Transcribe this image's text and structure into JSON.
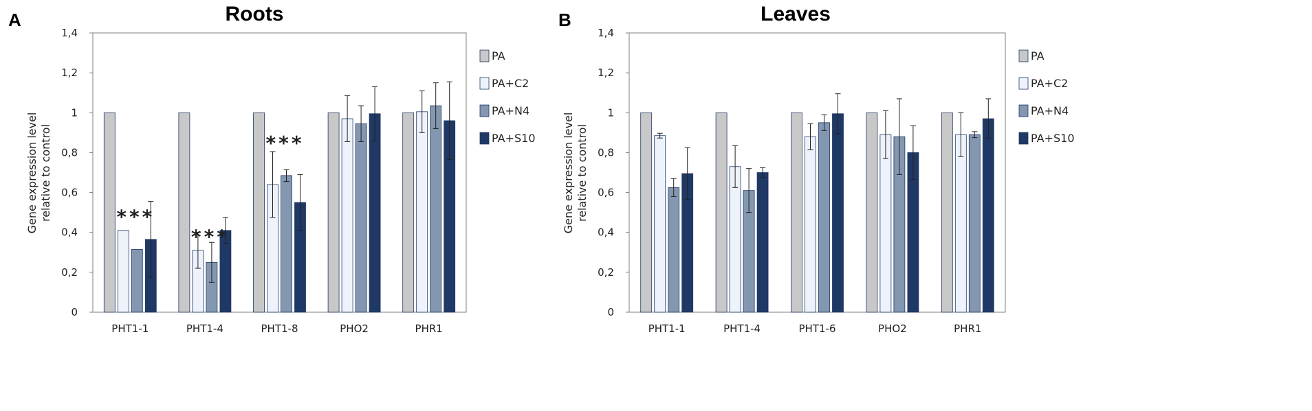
{
  "chart_data": [
    {
      "type": "bar",
      "panel": "A",
      "title": "Roots",
      "xlabel": "",
      "ylabel_line1": "Gene expression level",
      "ylabel_line2": "relative to control",
      "ylim": [
        0,
        1.4
      ],
      "yticks": [
        0,
        0.2,
        0.4,
        0.6,
        0.8,
        1,
        1.2,
        1.4
      ],
      "ytick_labels": [
        "0",
        "0,2",
        "0,4",
        "0,6",
        "0,8",
        "1",
        "1,2",
        "1,4"
      ],
      "categories": [
        "PHT1-1",
        "PHT1-4",
        "PHT1-8",
        "PHO2",
        "PHR1"
      ],
      "series": [
        {
          "name": "PA",
          "color": "#c8c8c8",
          "values": [
            1,
            1,
            1,
            1,
            1
          ],
          "errors": [
            0,
            0,
            0,
            0,
            0
          ]
        },
        {
          "name": "PA+C2",
          "color": "#eef3fb",
          "values": [
            0.41,
            0.31,
            0.64,
            0.97,
            1.005
          ],
          "errors": [
            0,
            0.09,
            0.165,
            0.115,
            0.105
          ]
        },
        {
          "name": "PA+N4",
          "color": "#8497b0",
          "values": [
            0.315,
            0.25,
            0.685,
            0.945,
            1.035
          ],
          "errors": [
            0,
            0.1,
            0.03,
            0.09,
            0.115
          ]
        },
        {
          "name": "PA+S10",
          "color": "#203864",
          "values": [
            0.365,
            0.41,
            0.55,
            0.995,
            0.96
          ],
          "errors": [
            0.19,
            0.065,
            0.14,
            0.135,
            0.195
          ]
        }
      ],
      "annotations": [
        {
          "category": "PHT1-1",
          "text": "***",
          "y": 0.5
        },
        {
          "category": "PHT1-4",
          "text": "***",
          "y": 0.4
        },
        {
          "category": "PHT1-8",
          "text": "***",
          "y": 0.87
        }
      ],
      "legend_position": "right"
    },
    {
      "type": "bar",
      "panel": "B",
      "title": "Leaves",
      "xlabel": "",
      "ylabel_line1": "Gene expression level",
      "ylabel_line2": "relative to control",
      "ylim": [
        0,
        1.4
      ],
      "yticks": [
        0,
        0.2,
        0.4,
        0.6,
        0.8,
        1,
        1.2,
        1.4
      ],
      "ytick_labels": [
        "0",
        "0,2",
        "0,4",
        "0,6",
        "0,8",
        "1",
        "1,2",
        "1,4"
      ],
      "categories": [
        "PHT1-1",
        "PHT1-4",
        "PHT1-6",
        "PHO2",
        "PHR1"
      ],
      "series": [
        {
          "name": "PA",
          "color": "#c8c8c8",
          "values": [
            1,
            1,
            1,
            1,
            1
          ],
          "errors": [
            0,
            0,
            0,
            0,
            0
          ]
        },
        {
          "name": "PA+C2",
          "color": "#eef3fb",
          "values": [
            0.885,
            0.73,
            0.88,
            0.89,
            0.89
          ],
          "errors": [
            0.012,
            0.105,
            0.065,
            0.12,
            0.11
          ]
        },
        {
          "name": "PA+N4",
          "color": "#8497b0",
          "values": [
            0.625,
            0.61,
            0.95,
            0.88,
            0.89
          ],
          "errors": [
            0.045,
            0.11,
            0.04,
            0.19,
            0.015
          ]
        },
        {
          "name": "PA+S10",
          "color": "#203864",
          "values": [
            0.695,
            0.7,
            0.995,
            0.8,
            0.97
          ],
          "errors": [
            0.13,
            0.025,
            0.1,
            0.135,
            0.1
          ]
        }
      ],
      "annotations": [],
      "legend_position": "right"
    }
  ]
}
